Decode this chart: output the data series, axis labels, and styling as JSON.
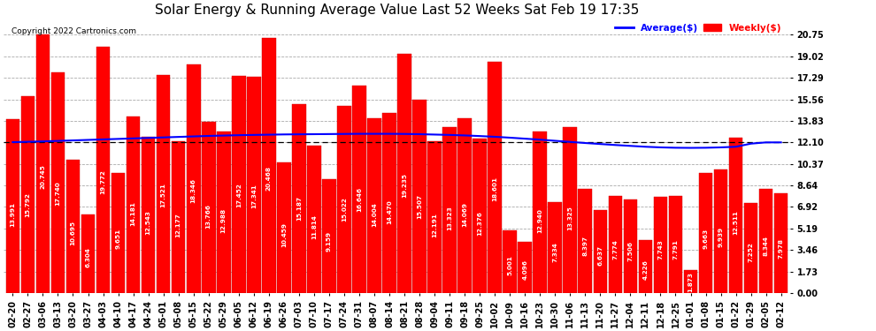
{
  "title": "Solar Energy & Running Average Value Last 52 Weeks Sat Feb 19 17:35",
  "copyright": "Copyright 2022 Cartronics.com",
  "legend_avg": "Average($)",
  "legend_weekly": "Weekly($)",
  "categories": [
    "02-20",
    "02-27",
    "03-06",
    "03-13",
    "03-20",
    "03-27",
    "04-03",
    "04-10",
    "04-17",
    "04-24",
    "05-01",
    "05-08",
    "05-15",
    "05-22",
    "05-29",
    "06-05",
    "06-12",
    "06-19",
    "06-26",
    "07-03",
    "07-10",
    "07-17",
    "07-24",
    "07-31",
    "08-07",
    "08-14",
    "08-21",
    "08-28",
    "09-04",
    "09-11",
    "09-18",
    "09-25",
    "10-02",
    "10-09",
    "10-16",
    "10-23",
    "10-30",
    "11-06",
    "11-13",
    "11-20",
    "11-27",
    "12-04",
    "12-11",
    "12-18",
    "12-25",
    "01-01",
    "01-08",
    "01-15",
    "01-22",
    "01-29",
    "02-05",
    "02-12"
  ],
  "weekly_values": [
    13.991,
    15.792,
    20.745,
    17.74,
    10.695,
    6.304,
    19.772,
    9.651,
    14.181,
    12.543,
    17.521,
    12.177,
    18.346,
    13.766,
    12.988,
    17.452,
    17.341,
    20.468,
    10.459,
    15.187,
    11.814,
    9.159,
    15.022,
    16.646,
    14.004,
    14.47,
    19.235,
    15.507,
    12.191,
    13.323,
    14.069,
    12.376,
    18.601,
    5.001,
    4.096,
    12.94,
    7.334,
    13.325,
    8.397,
    6.637,
    7.774,
    7.506,
    4.226,
    7.743,
    7.791,
    1.873,
    9.663,
    9.939,
    12.511,
    7.252,
    8.344,
    7.978
  ],
  "avg_values": [
    12.12,
    12.15,
    12.18,
    12.22,
    12.26,
    12.3,
    12.34,
    12.38,
    12.42,
    12.46,
    12.5,
    12.54,
    12.58,
    12.62,
    12.65,
    12.68,
    12.7,
    12.72,
    12.74,
    12.75,
    12.76,
    12.77,
    12.78,
    12.79,
    12.79,
    12.79,
    12.78,
    12.76,
    12.73,
    12.7,
    12.66,
    12.61,
    12.55,
    12.48,
    12.4,
    12.32,
    12.23,
    12.14,
    12.05,
    11.97,
    11.89,
    11.82,
    11.75,
    11.7,
    11.67,
    11.66,
    11.67,
    11.7,
    11.75,
    12.0,
    12.1,
    12.1
  ],
  "bar_color": "#ff0000",
  "bar_edge_color": "#cc0000",
  "avg_line_color": "#0000ff",
  "current_line_color": "#000000",
  "current_line_value": 12.1,
  "background_color": "#ffffff",
  "plot_bg_color": "#ffffff",
  "grid_color": "#aaaaaa",
  "yticks": [
    0.0,
    1.73,
    3.46,
    5.19,
    6.92,
    8.64,
    10.37,
    12.1,
    13.83,
    15.56,
    17.29,
    19.02,
    20.75
  ],
  "ylim": [
    0,
    22.0
  ],
  "title_fontsize": 11,
  "tick_fontsize": 7,
  "annotation_fontsize": 5.2,
  "copyright_fontsize": 6.5
}
